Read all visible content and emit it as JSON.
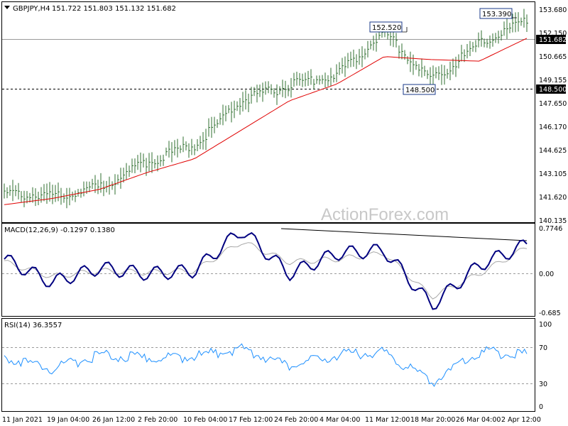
{
  "header": {
    "symbol": "GBPJPY,H4",
    "ohlc": "151.722 151.803 151.132 151.682"
  },
  "watermark": "ActionForex.com",
  "colors": {
    "price_bars": "#2f6f2f",
    "ma_line": "#e00000",
    "macd_line": "#000080",
    "macd_signal": "#a0a0a0",
    "rsi_line": "#1e90ff",
    "level_line": "#808080",
    "trendline": "#000000"
  },
  "annotations": {
    "high1": "152.520",
    "high2": "153.390",
    "low1": "148.500",
    "current_price": "151.682",
    "support_level": "148.500"
  },
  "price_axis": {
    "ticks": [
      "153.680",
      "152.150",
      "150.665",
      "149.155",
      "147.650",
      "146.170",
      "144.625",
      "143.105",
      "141.620",
      "140.135"
    ]
  },
  "macd": {
    "label": "MACD(12,26,9) -0.1297 0.1380",
    "ticks": [
      "0.7746",
      "0.00",
      "-0.685"
    ]
  },
  "rsi": {
    "label": "RSI(14) 36.3557",
    "ticks": [
      "100",
      "70",
      "30",
      "0"
    ]
  },
  "time_axis": {
    "labels": [
      "11 Jan 2021",
      "19 Jan 04:00",
      "26 Jan 12:00",
      "2 Feb 20:00",
      "10 Feb 04:00",
      "17 Feb 12:00",
      "24 Feb 20:00",
      "4 Mar 04:00",
      "11 Mar 12:00",
      "18 Mar 20:00",
      "26 Mar 04:00",
      "2 Apr 12:00"
    ]
  },
  "chart_data": {
    "type": "line",
    "x": [
      "11 Jan 2021",
      "19 Jan 04:00",
      "26 Jan 12:00",
      "2 Feb 20:00",
      "10 Feb 04:00",
      "17 Feb 12:00",
      "24 Feb 20:00",
      "4 Mar 04:00",
      "11 Mar 12:00",
      "18 Mar 20:00",
      "26 Mar 04:00",
      "2 Apr 12:00"
    ],
    "series": [
      {
        "name": "GBPJPY,H4",
        "values": [
          141.8,
          141.7,
          142.2,
          143.9,
          145.0,
          147.9,
          148.9,
          149.6,
          152.4,
          149.2,
          151.6,
          153.1
        ]
      },
      {
        "name": "",
        "values": [
          141.1,
          141.5,
          142.1,
          143.2,
          144.1,
          146.0,
          147.9,
          149.0,
          150.8,
          150.6,
          150.5,
          152.0
        ]
      }
    ],
    "ylim": [
      140.135,
      153.9
    ],
    "macd": {
      "label": "MACD(12,26,9) -0.1297 0.1380",
      "values": [
        0.25,
        -0.15,
        0.1,
        0.0,
        0.05,
        0.75,
        0.0,
        0.35,
        0.4,
        -0.55,
        0.15,
        0.5
      ],
      "signal": [
        0.2,
        -0.05,
        0.05,
        0.02,
        0.05,
        0.55,
        0.2,
        0.25,
        0.35,
        -0.4,
        0.0,
        0.45
      ]
    },
    "rsi": {
      "label": "RSI(14) 36.3557",
      "values": [
        60,
        45,
        62,
        58,
        60,
        70,
        48,
        62,
        66,
        28,
        66,
        62
      ],
      "levels": [
        30,
        70
      ]
    }
  }
}
